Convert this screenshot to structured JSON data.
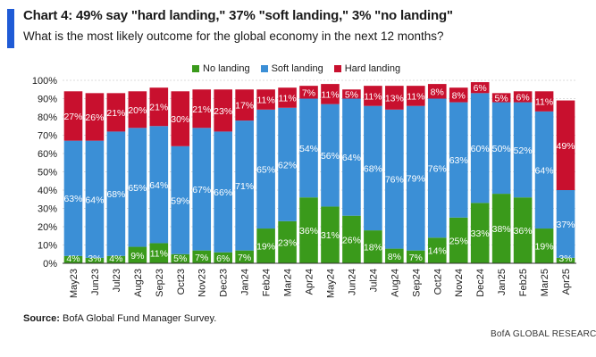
{
  "header": {
    "title": "Chart 4: 49% say \"hard landing,\" 37% \"soft landing,\" 3% \"no landing\"",
    "subtitle": "What is the most likely outcome for the global economy in the next 12 months?"
  },
  "legend": [
    {
      "label": "No landing",
      "color": "#3a9a1b"
    },
    {
      "label": "Soft landing",
      "color": "#3b8fd6"
    },
    {
      "label": "Hard landing",
      "color": "#c8102e"
    }
  ],
  "footer": {
    "source_label": "Source:",
    "source_text": "BofA Global Fund Manager Survey.",
    "brand": "BofA GLOBAL RESEARCH"
  },
  "chart_data": {
    "type": "bar",
    "stacked": true,
    "ylim": [
      0,
      100
    ],
    "y_ticks": [
      "0%",
      "10%",
      "20%",
      "30%",
      "40%",
      "50%",
      "60%",
      "70%",
      "80%",
      "90%",
      "100%"
    ],
    "grid": true,
    "legend_position": "top",
    "categories": [
      "May23",
      "Jun23",
      "Jul23",
      "Aug23",
      "Sep23",
      "Oct23",
      "Nov23",
      "Dec23",
      "Jan24",
      "Feb24",
      "Mar24",
      "Apr24",
      "May24",
      "Jun24",
      "Jul24",
      "Aug24",
      "Sep24",
      "Oct24",
      "Nov24",
      "Dec24",
      "Jan25",
      "Feb25",
      "Mar25",
      "Apr25"
    ],
    "series": [
      {
        "name": "No landing",
        "color": "#3a9a1b",
        "values": [
          4,
          3,
          4,
          9,
          11,
          5,
          7,
          6,
          7,
          19,
          23,
          36,
          31,
          26,
          18,
          8,
          7,
          14,
          25,
          33,
          38,
          36,
          19,
          3
        ],
        "labels": [
          "4%",
          "3%",
          "4%",
          "9%",
          "11%",
          "5%",
          "7%",
          "6%",
          "7%",
          "19%",
          "23%",
          "36%",
          "31%",
          "26%",
          "18%",
          "8%",
          "7%",
          "14%",
          "25%",
          "33%",
          "38%",
          "36%",
          "19%",
          "3%"
        ]
      },
      {
        "name": "Soft landing",
        "color": "#3b8fd6",
        "values": [
          63,
          64,
          68,
          65,
          64,
          59,
          67,
          66,
          71,
          65,
          62,
          54,
          56,
          64,
          68,
          76,
          79,
          76,
          63,
          60,
          50,
          52,
          64,
          37
        ],
        "labels": [
          "63%",
          "64%",
          "68%",
          "65%",
          "64%",
          "59%",
          "67%",
          "66%",
          "71%",
          "65%",
          "62%",
          "54%",
          "56%",
          "64%",
          "68%",
          "76%",
          "79%",
          "76%",
          "63%",
          "60%",
          "50%",
          "52%",
          "64%",
          "37%"
        ]
      },
      {
        "name": "Hard landing",
        "color": "#c8102e",
        "values": [
          27,
          26,
          21,
          20,
          21,
          30,
          21,
          23,
          17,
          11,
          11,
          7,
          11,
          5,
          11,
          13,
          11,
          8,
          8,
          6,
          5,
          6,
          11,
          49
        ],
        "labels": [
          "27%",
          "26%",
          "21%",
          "20%",
          "21%",
          "30%",
          "21%",
          "23%",
          "17%",
          "11%",
          "11%",
          "7%",
          "11%",
          "5%",
          "11%",
          "13%",
          "11%",
          "8%",
          "8%",
          "6%",
          "5%",
          "6%",
          "11%",
          "49%"
        ]
      }
    ]
  }
}
